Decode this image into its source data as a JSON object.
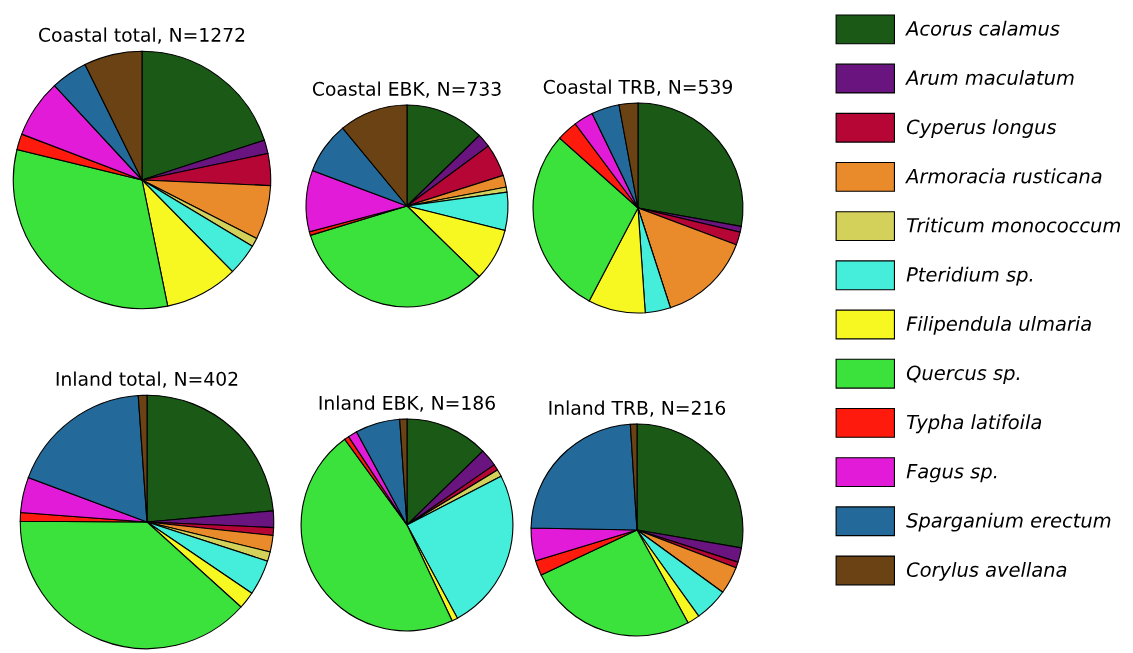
{
  "chart_data": [
    {
      "type": "pie",
      "title": "Coastal total, N=1272",
      "legend": "right",
      "categories": [
        "Acorus calamus",
        "Arum maculatum",
        "Cyperus longus",
        "Armoracia rusticana",
        "Triticum monococcum",
        "Pteridium sp.",
        "Filipendula ulmaria",
        "Quercus sp.",
        "Typha latifoila",
        "Fagus sp.",
        "Sparganium erectum",
        "Corylus avellana"
      ],
      "colors": [
        "#1a5a16",
        "#6a157f",
        "#b50636",
        "#e98a2b",
        "#d4d15a",
        "#44eedb",
        "#f7f722",
        "#3ae23b",
        "#fe1a0c",
        "#e21bd8",
        "#236a9a",
        "#6a4214"
      ],
      "values": [
        20,
        1.7,
        4,
        6.8,
        1.1,
        4,
        9.2,
        32,
        2,
        7.3,
        4.6,
        7.3
      ]
    },
    {
      "type": "pie",
      "title": "Coastal EBK, N=733",
      "colors": [
        "#1a5a16",
        "#6a157f",
        "#b50636",
        "#e98a2b",
        "#d4d15a",
        "#44eedb",
        "#f7f722",
        "#3ae23b",
        "#fe1a0c",
        "#e21bd8",
        "#236a9a",
        "#6a4214"
      ],
      "values": [
        12.7,
        2.2,
        5.2,
        1.9,
        0.8,
        6.1,
        8.4,
        33,
        0.6,
        9.8,
        8.3,
        11
      ]
    },
    {
      "type": "pie",
      "title": "Coastal TRB, N=539",
      "colors": [
        "#1a5a16",
        "#6a157f",
        "#b50636",
        "#e98a2b",
        "#d4d15a",
        "#44eedb",
        "#f7f722",
        "#3ae23b",
        "#fe1a0c",
        "#e21bd8",
        "#236a9a",
        "#6a4214"
      ],
      "values": [
        27.8,
        0.9,
        2,
        14.3,
        0,
        3.9,
        8.8,
        28.9,
        3.2,
        3,
        4.3,
        2.9
      ]
    },
    {
      "type": "pie",
      "title": "Inland total, N=402",
      "colors": [
        "#1a5a16",
        "#6a157f",
        "#b50636",
        "#e98a2b",
        "#d4d15a",
        "#44eedb",
        "#f7f722",
        "#3ae23b",
        "#fe1a0c",
        "#e21bd8",
        "#236a9a",
        "#6a4214"
      ],
      "values": [
        23.6,
        2.1,
        1,
        2.1,
        1.2,
        4.5,
        2.2,
        38.4,
        1.1,
        4.5,
        18.2,
        1.1
      ]
    },
    {
      "type": "pie",
      "title": "Inland EBK, N=186",
      "colors": [
        "#1a5a16",
        "#6a157f",
        "#b50636",
        "#e98a2b",
        "#d4d15a",
        "#44eedb",
        "#f7f722",
        "#3ae23b",
        "#fe1a0c",
        "#e21bd8",
        "#236a9a",
        "#6a4214"
      ],
      "values": [
        12.7,
        2.7,
        0.9,
        0,
        1.1,
        24.7,
        0.9,
        47,
        0.7,
        1.4,
        6.8,
        1.1
      ]
    },
    {
      "type": "pie",
      "title": "Inland TRB, N=216",
      "colors": [
        "#1a5a16",
        "#6a157f",
        "#b50636",
        "#e98a2b",
        "#d4d15a",
        "#44eedb",
        "#f7f722",
        "#3ae23b",
        "#fe1a0c",
        "#e21bd8",
        "#236a9a",
        "#6a4214"
      ],
      "values": [
        27.7,
        2.2,
        0.9,
        4.2,
        0,
        5.1,
        1.9,
        26,
        2.3,
        5,
        23.7,
        1
      ]
    }
  ]
}
